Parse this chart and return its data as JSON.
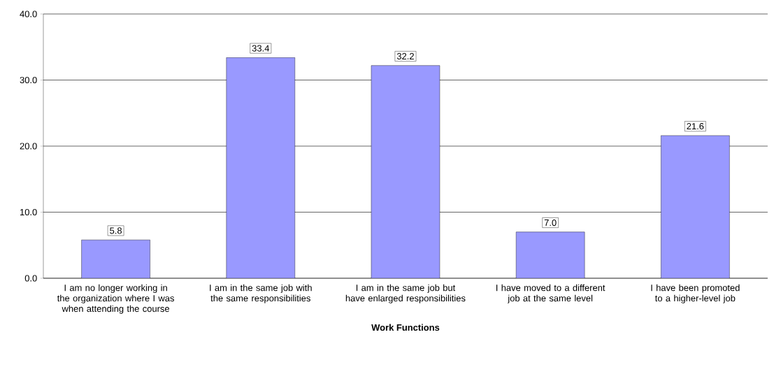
{
  "chart_data": {
    "type": "bar",
    "categories": [
      "I am no longer working in the organization where I was when attending the course",
      "I am in the same job with the same responsibilities",
      "I am in the same job but have enlarged responsibilities",
      "I have moved to a different job at the same level",
      "I have been promoted to a higher-level job"
    ],
    "values": [
      5.8,
      33.4,
      32.2,
      7.0,
      21.6
    ],
    "value_labels": [
      "5.8",
      "33.4",
      "32.2",
      "7.0",
      "21.6"
    ],
    "color": "#9999ff",
    "xlabel": "Work Functions",
    "ylim": [
      0,
      40
    ],
    "yticks": [
      {
        "value": 0,
        "label": "0.0"
      },
      {
        "value": 10,
        "label": "10.0"
      },
      {
        "value": 20,
        "label": "20.0"
      },
      {
        "value": 30,
        "label": "30.0"
      },
      {
        "value": 40,
        "label": "40.0"
      }
    ],
    "grid": "y"
  }
}
